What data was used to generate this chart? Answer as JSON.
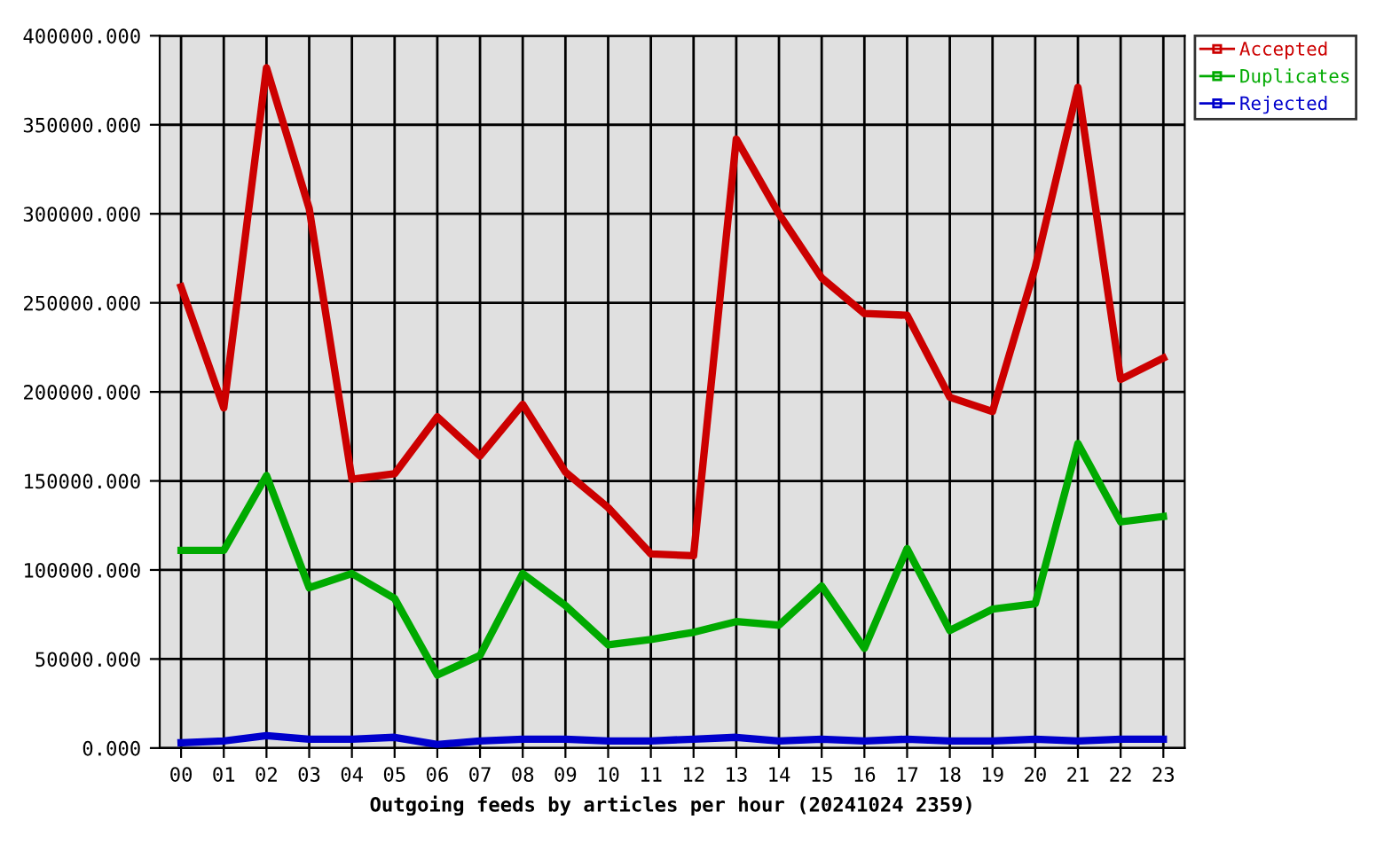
{
  "chart_data": {
    "type": "line",
    "xlabel": "Outgoing feeds by articles per hour (20241024 2359)",
    "categories": [
      "00",
      "01",
      "02",
      "03",
      "04",
      "05",
      "06",
      "07",
      "08",
      "09",
      "10",
      "11",
      "12",
      "13",
      "14",
      "15",
      "16",
      "17",
      "18",
      "19",
      "20",
      "21",
      "22",
      "23"
    ],
    "series": [
      {
        "name": "Accepted",
        "color": "#cc0000",
        "values": [
          259000,
          191000,
          382000,
          303000,
          151000,
          154000,
          186000,
          164000,
          193000,
          155000,
          135000,
          109000,
          108000,
          342000,
          300000,
          264000,
          244000,
          243000,
          197000,
          189000,
          270000,
          371000,
          207000,
          219000
        ]
      },
      {
        "name": "Duplicates",
        "color": "#00aa00",
        "values": [
          111000,
          111000,
          153000,
          90000,
          98000,
          84000,
          41000,
          52000,
          98000,
          80000,
          58000,
          61000,
          65000,
          71000,
          69000,
          91000,
          56000,
          112000,
          66000,
          78000,
          81000,
          171000,
          127000,
          130000
        ]
      },
      {
        "name": "Rejected",
        "color": "#0000cc",
        "values": [
          3000,
          4000,
          7000,
          5000,
          5000,
          6000,
          2000,
          4000,
          5000,
          5000,
          4000,
          4000,
          5000,
          6000,
          4000,
          5000,
          4000,
          5000,
          4000,
          4000,
          5000,
          4000,
          5000,
          5000
        ]
      }
    ],
    "ylim": [
      0,
      400000
    ],
    "yticks": [
      {
        "value": 0,
        "label": "0.000"
      },
      {
        "value": 50000,
        "label": "50000.000"
      },
      {
        "value": 100000,
        "label": "100000.000"
      },
      {
        "value": 150000,
        "label": "150000.000"
      },
      {
        "value": 200000,
        "label": "200000.000"
      },
      {
        "value": 250000,
        "label": "250000.000"
      },
      {
        "value": 300000,
        "label": "300000.000"
      },
      {
        "value": 350000,
        "label": "350000.000"
      },
      {
        "value": 400000,
        "label": "400000.000"
      }
    ],
    "grid": true,
    "legend": "top right",
    "marker": "none",
    "line_style": "solid"
  }
}
